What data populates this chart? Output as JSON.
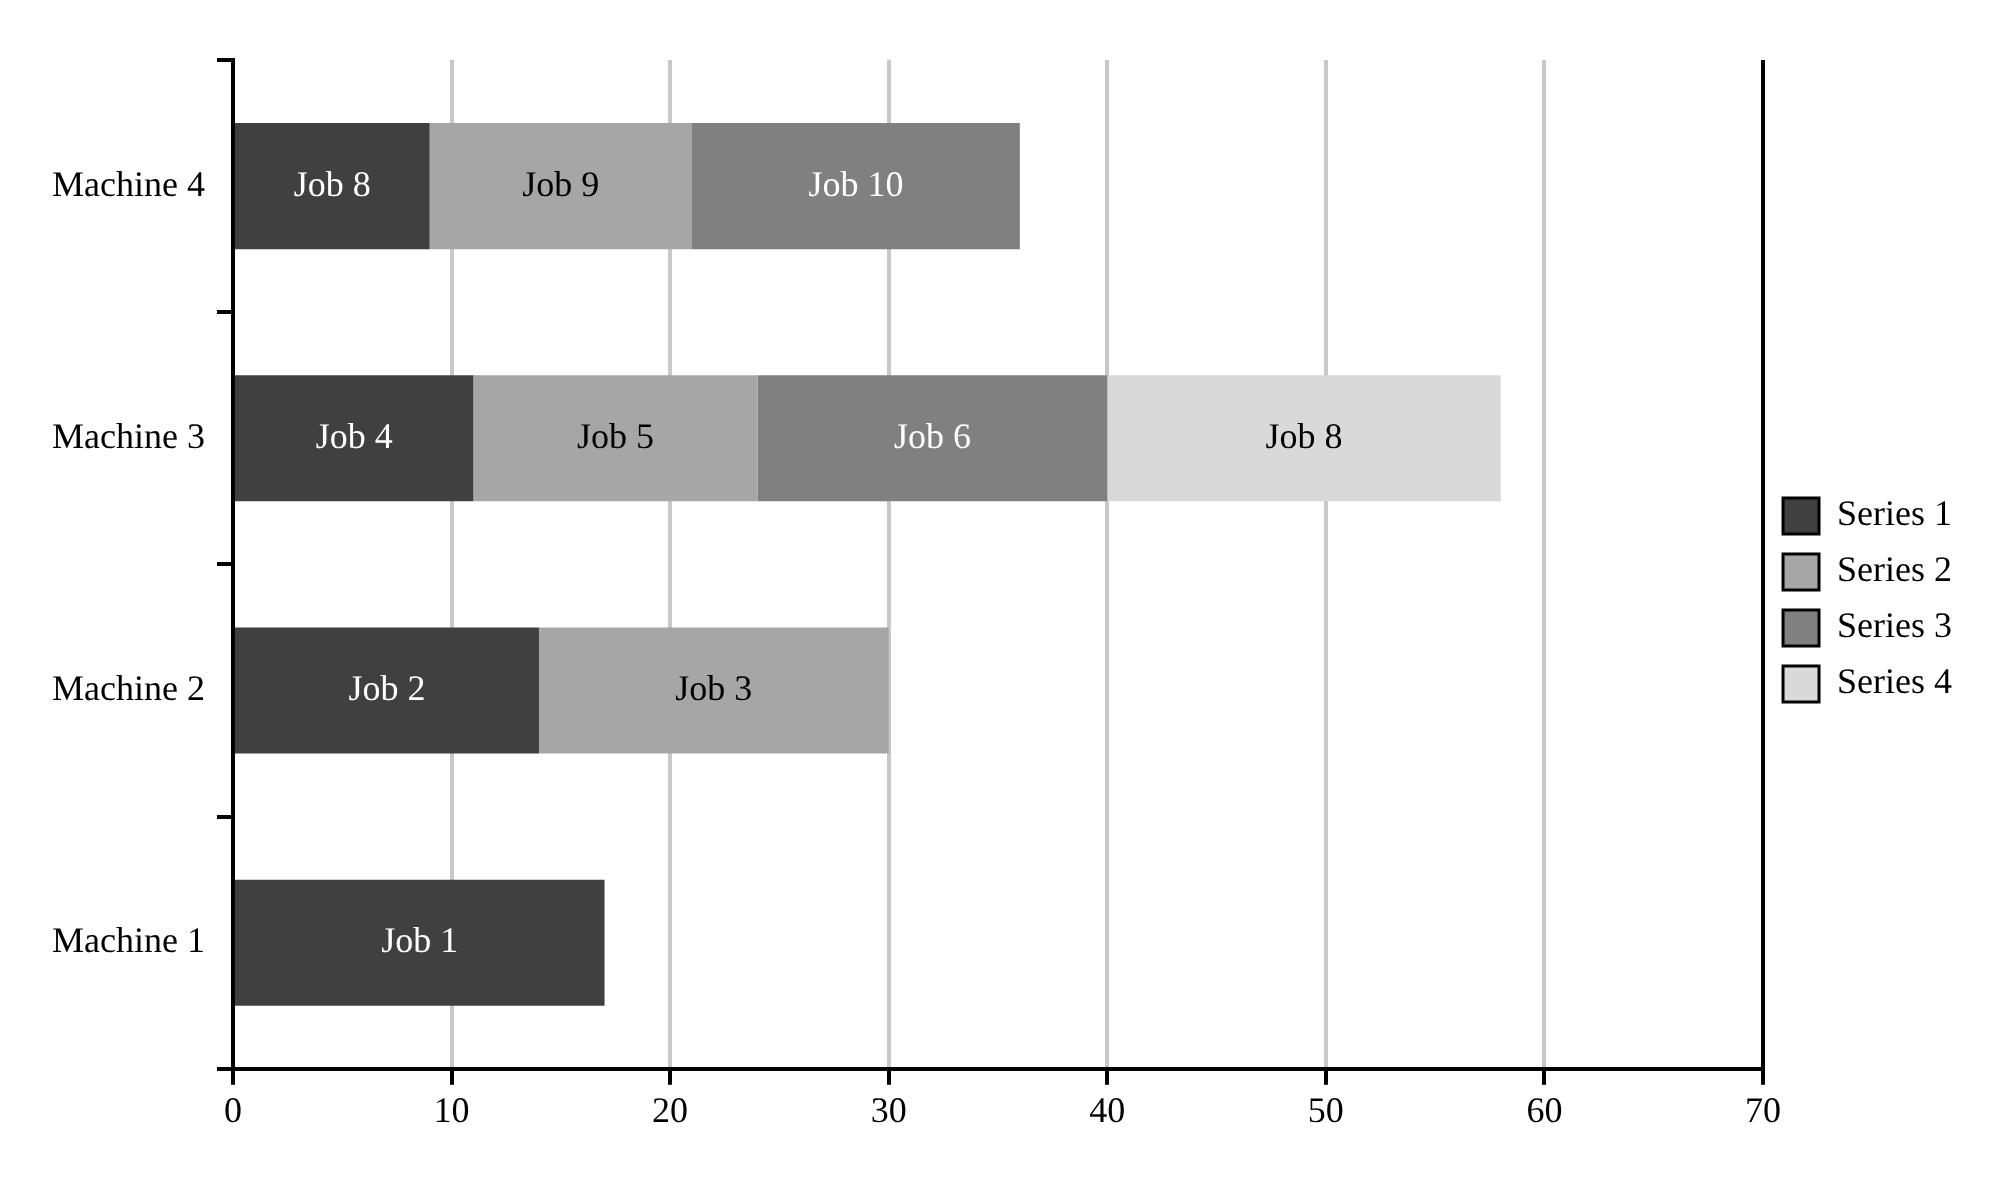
{
  "chart_data": {
    "type": "bar",
    "orientation": "horizontal",
    "stacked": true,
    "categories": [
      "Machine 4",
      "Machine 3",
      "Machine 2",
      "Machine 1"
    ],
    "series": [
      {
        "name": "Series 1",
        "color": "#404040",
        "values": [
          9,
          11,
          14,
          17
        ],
        "value_labels": [
          "Job 8",
          "Job 4",
          "Job 2",
          "Job 1"
        ]
      },
      {
        "name": "Series 2",
        "color": "#a6a6a6",
        "values": [
          12,
          13,
          16,
          null
        ],
        "value_labels": [
          "Job 9",
          "Job 5",
          "Job 3",
          null
        ]
      },
      {
        "name": "Series 3",
        "color": "#808080",
        "values": [
          15,
          16,
          null,
          null
        ],
        "value_labels": [
          "Job 10",
          "Job 6",
          null,
          null
        ]
      },
      {
        "name": "Series 4",
        "color": "#d9d9d9",
        "values": [
          null,
          18,
          null,
          null
        ],
        "value_labels": [
          null,
          "Job 8",
          null,
          null
        ]
      }
    ],
    "xlim": [
      0,
      70
    ],
    "xticks": [
      0,
      10,
      20,
      30,
      40,
      50,
      60,
      70
    ],
    "grid": "x",
    "legend": "right"
  }
}
